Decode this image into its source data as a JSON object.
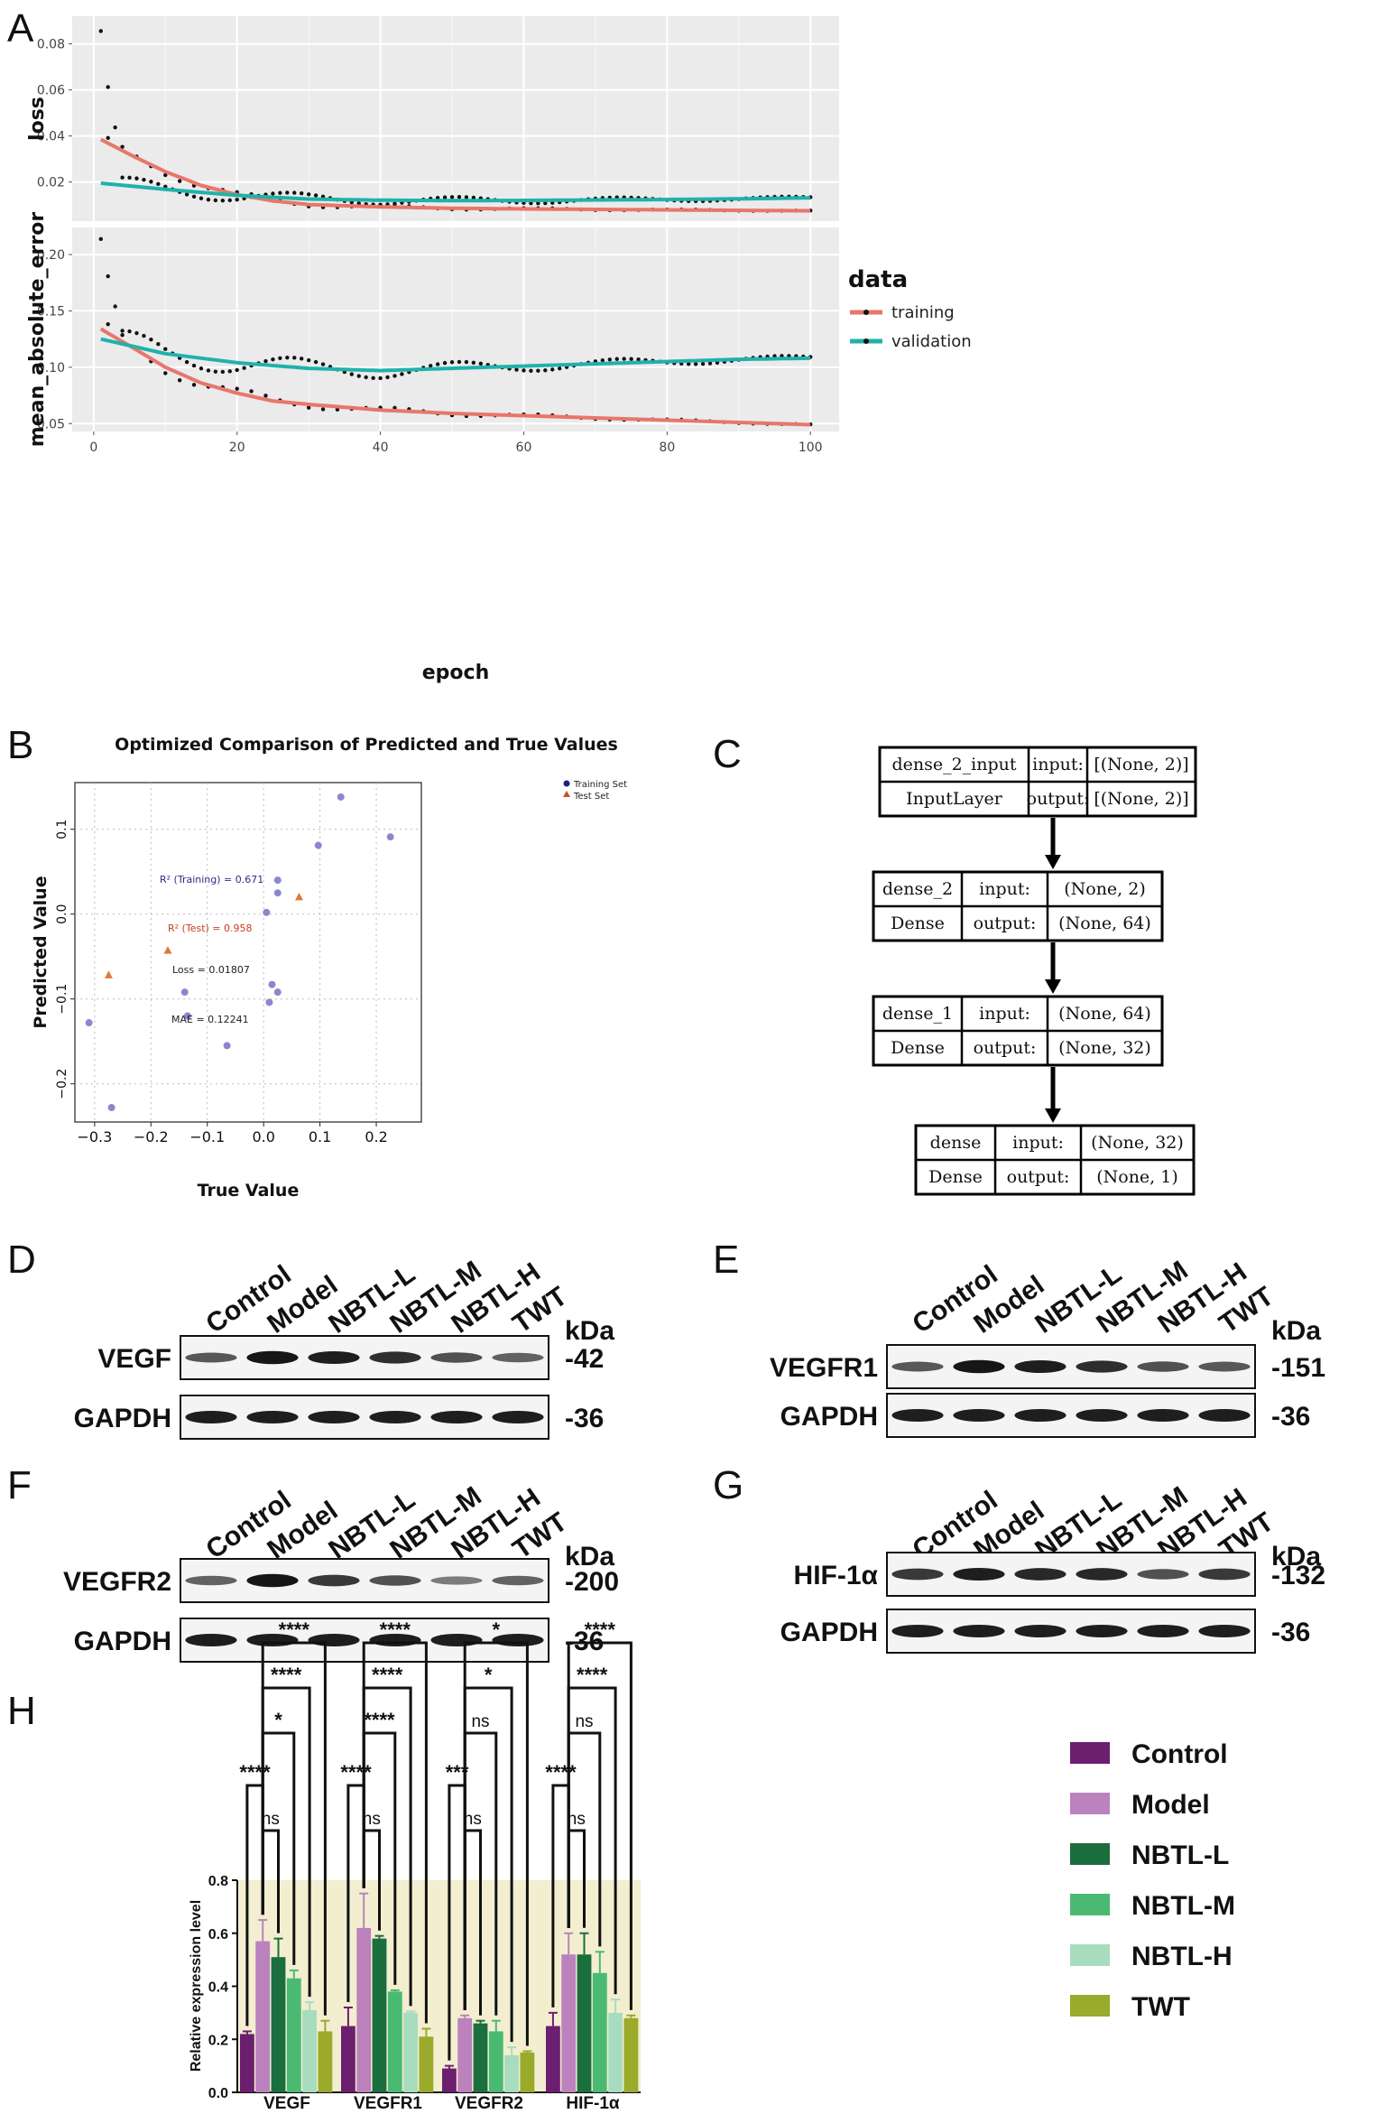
{
  "panels": {
    "A": "A",
    "B": "B",
    "C": "C",
    "D": "D",
    "E": "E",
    "F": "F",
    "G": "G",
    "H": "H"
  },
  "colors": {
    "training": "#e8766b",
    "validation": "#20b2aa",
    "panel_bg": "#ebebeb",
    "train_pt": "#1a237e",
    "test_pt": "#e07a3a",
    "band": "#f3eed0"
  },
  "chart_data": [
    {
      "type": "line",
      "title": "",
      "xlabel": "epoch",
      "xlim": [
        -3,
        104
      ],
      "xticks": [
        0,
        20,
        40,
        60,
        80,
        100
      ],
      "legend_title": "data",
      "legend": [
        "training",
        "validation"
      ],
      "facets": [
        {
          "ylabel": "loss",
          "ylim": [
            0.003,
            0.092
          ],
          "yticks": [
            0.02,
            0.04,
            0.06,
            0.08
          ],
          "yticklabels": [
            "0.02",
            "0.04",
            "0.06",
            "0.08"
          ],
          "series": [
            {
              "name": "training",
              "x": [
                1,
                5,
                10,
                15,
                20,
                25,
                30,
                40,
                50,
                60,
                70,
                80,
                90,
                100
              ],
              "y": [
                0.0385,
                0.032,
                0.0245,
                0.0185,
                0.0145,
                0.0118,
                0.0102,
                0.0092,
                0.0086,
                0.0083,
                0.0081,
                0.0079,
                0.0077,
                0.0075
              ]
            },
            {
              "name": "validation",
              "x": [
                1,
                10,
                20,
                30,
                40,
                50,
                60,
                70,
                80,
                90,
                100
              ],
              "y": [
                0.0195,
                0.0168,
                0.0142,
                0.0126,
                0.0121,
                0.0119,
                0.012,
                0.0122,
                0.0124,
                0.0127,
                0.0131
              ]
            }
          ]
        },
        {
          "ylabel": "mean_absolute_error",
          "ylim": [
            0.043,
            0.224
          ],
          "yticks": [
            0.05,
            0.1,
            0.15,
            0.2
          ],
          "yticklabels": [
            "0.05",
            "0.10",
            "0.15",
            "0.20"
          ],
          "series": [
            {
              "name": "training",
              "x": [
                1,
                5,
                10,
                15,
                20,
                25,
                30,
                40,
                50,
                60,
                70,
                80,
                90,
                100
              ],
              "y": [
                0.134,
                0.119,
                0.1,
                0.086,
                0.077,
                0.07,
                0.067,
                0.062,
                0.059,
                0.057,
                0.055,
                0.053,
                0.051,
                0.049
              ]
            },
            {
              "name": "validation",
              "x": [
                1,
                10,
                20,
                30,
                40,
                50,
                60,
                70,
                80,
                90,
                100
              ],
              "y": [
                0.125,
                0.112,
                0.104,
                0.099,
                0.097,
                0.099,
                0.101,
                0.103,
                0.105,
                0.107,
                0.108
              ]
            }
          ]
        }
      ]
    },
    {
      "type": "scatter",
      "title": "Optimized Comparison of Predicted and True Values",
      "xlabel": "True Value",
      "ylabel": "Predicted Value",
      "xlim": [
        -0.335,
        0.28
      ],
      "ylim": [
        -0.245,
        0.155
      ],
      "xticks": [
        -0.3,
        -0.2,
        -0.1,
        0.0,
        0.1,
        0.2
      ],
      "xticklabels": [
        "−0.3",
        "−0.2",
        "−0.1",
        "0.0",
        "0.1",
        "0.2"
      ],
      "yticks": [
        -0.2,
        -0.1,
        0.0,
        0.1
      ],
      "yticklabels": [
        "−0.2",
        "−0.1",
        "0.0",
        "0.1"
      ],
      "legend": [
        "Training Set",
        "Test Set"
      ],
      "series": [
        {
          "name": "Training Set",
          "x": [
            -0.31,
            -0.27,
            -0.14,
            -0.135,
            -0.065,
            0.005,
            0.01,
            0.015,
            0.025,
            0.025,
            0.025,
            0.097,
            0.137,
            0.225
          ],
          "y": [
            -0.128,
            -0.228,
            -0.092,
            -0.12,
            -0.155,
            0.002,
            -0.104,
            -0.083,
            -0.092,
            0.025,
            0.04,
            0.081,
            0.138,
            0.091
          ]
        },
        {
          "name": "Test Set",
          "x": [
            -0.275,
            -0.17,
            0.063
          ],
          "y": [
            -0.072,
            -0.043,
            0.02
          ]
        }
      ],
      "annotations": [
        "R² (Training) = 0.671",
        "R² (Test) = 0.958",
        "Loss = 0.01807",
        "MAE = 0.12241"
      ]
    },
    {
      "type": "bar",
      "title": "",
      "ylabel": "Relative expression level",
      "ylim": [
        0,
        0.8
      ],
      "yticks": [
        0.0,
        0.2,
        0.4,
        0.6,
        0.8
      ],
      "yticklabels": [
        "0.0",
        "0.2",
        "0.4",
        "0.6",
        "0.8"
      ],
      "categories": [
        "VEGF",
        "VEGFR1",
        "VEGFR2",
        "HIF-1α"
      ],
      "series": [
        {
          "name": "Control",
          "color": "#6b1f6e",
          "values": [
            0.22,
            0.25,
            0.09,
            0.25
          ],
          "errors": [
            0.01,
            0.07,
            0.01,
            0.05
          ]
        },
        {
          "name": "Model",
          "color": "#bb82bd",
          "values": [
            0.57,
            0.62,
            0.28,
            0.52
          ],
          "errors": [
            0.08,
            0.13,
            0.01,
            0.08
          ]
        },
        {
          "name": "NBTL-L",
          "color": "#1b6e3d",
          "values": [
            0.51,
            0.58,
            0.26,
            0.52
          ],
          "errors": [
            0.07,
            0.01,
            0.01,
            0.08
          ]
        },
        {
          "name": "NBTL-M",
          "color": "#4aba72",
          "values": [
            0.43,
            0.38,
            0.23,
            0.45
          ],
          "errors": [
            0.03,
            0.005,
            0.04,
            0.08
          ]
        },
        {
          "name": "NBTL-H",
          "color": "#a8dcbe",
          "values": [
            0.31,
            0.3,
            0.14,
            0.3
          ],
          "errors": [
            0.03,
            0.005,
            0.03,
            0.05
          ]
        },
        {
          "name": "TWT",
          "color": "#9aaa2a",
          "values": [
            0.23,
            0.21,
            0.15,
            0.28
          ],
          "errors": [
            0.04,
            0.03,
            0.005,
            0.01
          ]
        }
      ],
      "significance": [
        [
          "****",
          "ns",
          "*",
          "****",
          "****"
        ],
        [
          "****",
          "ns",
          "****",
          "****",
          "****"
        ],
        [
          "***",
          "ns",
          "ns",
          "*",
          "*"
        ],
        [
          "****",
          "ns",
          "ns",
          "****",
          "****"
        ]
      ]
    }
  ],
  "network": {
    "nodes": [
      {
        "name": "dense_2_input",
        "type": "InputLayer",
        "input_label": "input:",
        "output_label": "output:",
        "input": "[(None, 2)]",
        "output": "[(None, 2)]"
      },
      {
        "name": "dense_2",
        "type": "Dense",
        "input_label": "input:",
        "output_label": "output:",
        "input": "(None, 2)",
        "output": "(None, 64)"
      },
      {
        "name": "dense_1",
        "type": "Dense",
        "input_label": "input:",
        "output_label": "output:",
        "input": "(None, 64)",
        "output": "(None, 32)"
      },
      {
        "name": "dense",
        "type": "Dense",
        "input_label": "input:",
        "output_label": "output:",
        "input": "(None, 32)",
        "output": "(None, 1)"
      }
    ]
  },
  "blots": {
    "lanes": [
      "Control",
      "Model",
      "NBTL-L",
      "NBTL-M",
      "NBTL-H",
      "TWT"
    ],
    "kda_label": "kDa",
    "panels": [
      {
        "label": "D",
        "protein": "VEGF",
        "protein_kda": "-42",
        "ref": "GAPDH",
        "ref_kda": "-36",
        "intensity": [
          0.55,
          0.95,
          0.9,
          0.8,
          0.6,
          0.5
        ]
      },
      {
        "label": "E",
        "protein": "VEGFR1",
        "protein_kda": "-151",
        "ref": "GAPDH",
        "ref_kda": "-36",
        "intensity": [
          0.55,
          0.95,
          0.9,
          0.8,
          0.6,
          0.55
        ]
      },
      {
        "label": "F",
        "protein": "VEGFR2",
        "protein_kda": "-200",
        "ref": "GAPDH",
        "ref_kda": "-36",
        "intensity": [
          0.5,
          0.95,
          0.75,
          0.6,
          0.35,
          0.5
        ]
      },
      {
        "label": "G",
        "protein": "HIF-1α",
        "protein_kda": "-132",
        "ref": "GAPDH",
        "ref_kda": "-36",
        "intensity": [
          0.75,
          0.9,
          0.85,
          0.85,
          0.6,
          0.75
        ]
      }
    ]
  }
}
